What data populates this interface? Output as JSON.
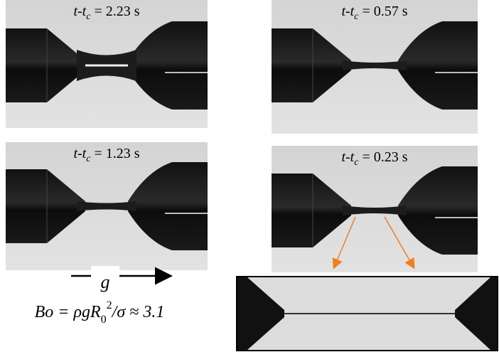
{
  "panels": [
    {
      "label": [
        "t-t",
        "c",
        " = 2.23 s"
      ]
    },
    {
      "label": [
        "t-t",
        "c",
        " = 0.57 s"
      ]
    },
    {
      "label": [
        "t-t",
        "c",
        " = 1.23 s"
      ]
    },
    {
      "label": [
        "t-t",
        "c",
        " = 0.23 s"
      ]
    }
  ],
  "gravity_label": "g",
  "bond_number": [
    "Bo = ρgR",
    "0",
    "2",
    "/σ ≈ 3.1"
  ]
}
